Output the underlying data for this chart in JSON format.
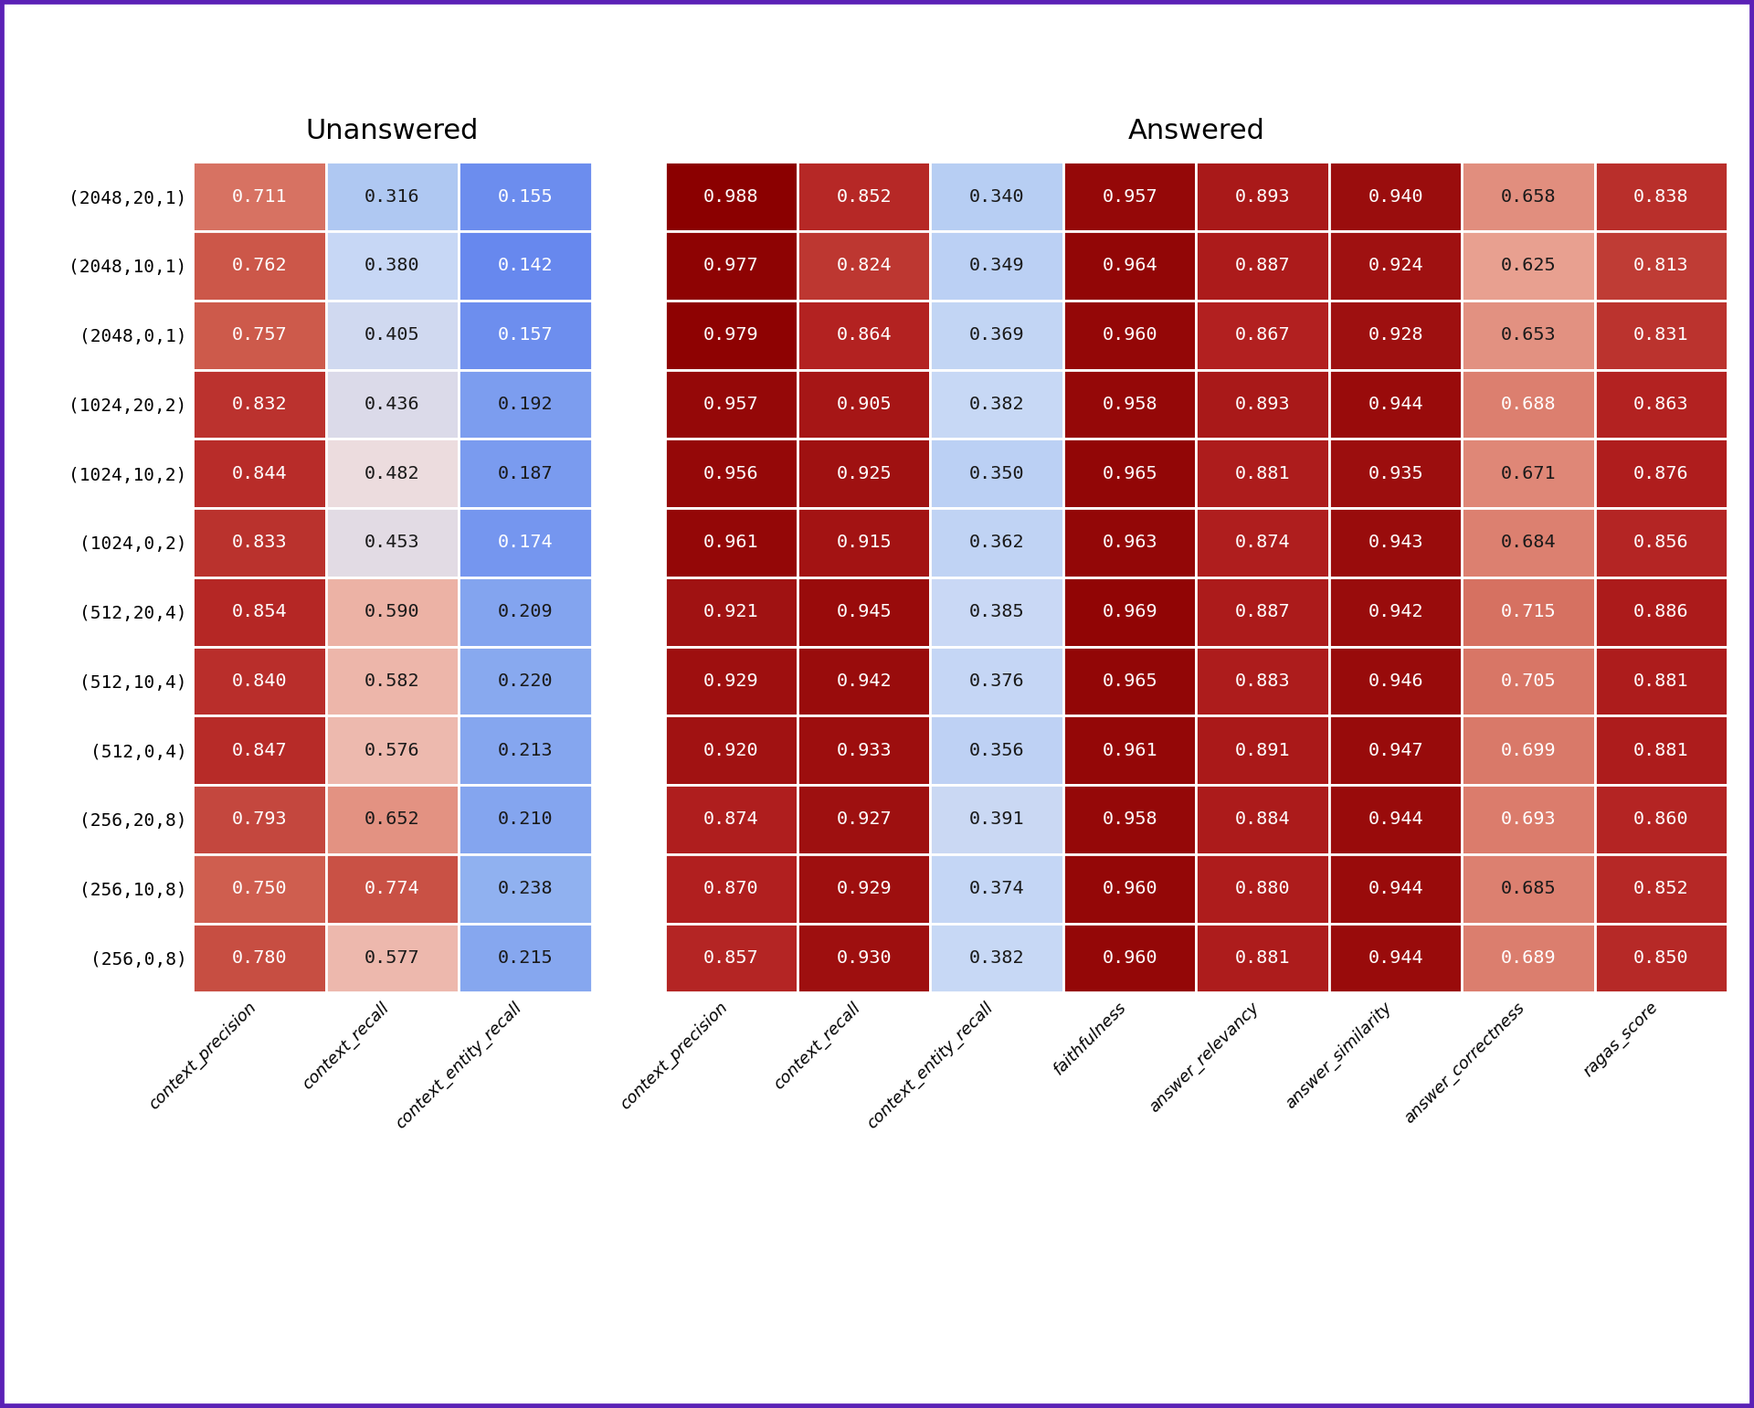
{
  "row_labels": [
    "(2048,20,1)",
    "(2048,10,1)",
    "(2048,0,1)",
    "(1024,20,2)",
    "(1024,10,2)",
    "(1024,0,2)",
    "(512,20,4)",
    "(512,10,4)",
    "(512,0,4)",
    "(256,20,8)",
    "(256,10,8)",
    "(256,0,8)"
  ],
  "unanswered_cols": [
    "context_precision",
    "context_recall",
    "context_entity_recall"
  ],
  "answered_cols": [
    "context_precision",
    "context_recall",
    "context_entity_recall",
    "faithfulness",
    "answer_relevancy",
    "answer_similarity",
    "answer_correctness",
    "ragas_score"
  ],
  "unanswered_data": [
    [
      0.711,
      0.316,
      0.155
    ],
    [
      0.762,
      0.38,
      0.142
    ],
    [
      0.757,
      0.405,
      0.157
    ],
    [
      0.832,
      0.436,
      0.192
    ],
    [
      0.844,
      0.482,
      0.187
    ],
    [
      0.833,
      0.453,
      0.174
    ],
    [
      0.854,
      0.59,
      0.209
    ],
    [
      0.84,
      0.582,
      0.22
    ],
    [
      0.847,
      0.576,
      0.213
    ],
    [
      0.793,
      0.652,
      0.21
    ],
    [
      0.75,
      0.774,
      0.238
    ],
    [
      0.78,
      0.577,
      0.215
    ]
  ],
  "answered_data": [
    [
      0.988,
      0.852,
      0.34,
      0.957,
      0.893,
      0.94,
      0.658,
      0.838
    ],
    [
      0.977,
      0.824,
      0.349,
      0.964,
      0.887,
      0.924,
      0.625,
      0.813
    ],
    [
      0.979,
      0.864,
      0.369,
      0.96,
      0.867,
      0.928,
      0.653,
      0.831
    ],
    [
      0.957,
      0.905,
      0.382,
      0.958,
      0.893,
      0.944,
      0.688,
      0.863
    ],
    [
      0.956,
      0.925,
      0.35,
      0.965,
      0.881,
      0.935,
      0.671,
      0.876
    ],
    [
      0.961,
      0.915,
      0.362,
      0.963,
      0.874,
      0.943,
      0.684,
      0.856
    ],
    [
      0.921,
      0.945,
      0.385,
      0.969,
      0.887,
      0.942,
      0.715,
      0.886
    ],
    [
      0.929,
      0.942,
      0.376,
      0.965,
      0.883,
      0.946,
      0.705,
      0.881
    ],
    [
      0.92,
      0.933,
      0.356,
      0.961,
      0.891,
      0.947,
      0.699,
      0.881
    ],
    [
      0.874,
      0.927,
      0.391,
      0.958,
      0.884,
      0.944,
      0.693,
      0.86
    ],
    [
      0.87,
      0.929,
      0.374,
      0.96,
      0.88,
      0.944,
      0.685,
      0.852
    ],
    [
      0.857,
      0.93,
      0.382,
      0.96,
      0.881,
      0.944,
      0.689,
      0.85
    ]
  ],
  "title_unanswered": "Unanswered",
  "title_answered": "Answered",
  "background_color": "#ffffff",
  "border_color": "#5b21b6",
  "vmin": 0.142,
  "vmax": 0.988
}
